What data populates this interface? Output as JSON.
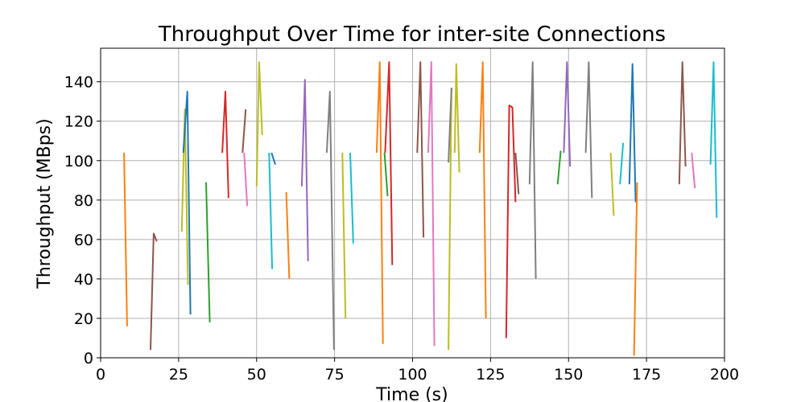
{
  "chart_data": {
    "type": "line",
    "title": "Throughput Over Time for inter-site Connections",
    "xlabel": "Time (s)",
    "ylabel": "Throughput (MBps)",
    "xlim": [
      0,
      200
    ],
    "ylim": [
      0,
      157
    ],
    "xticks": [
      0,
      25,
      50,
      75,
      100,
      125,
      150,
      175,
      200
    ],
    "yticks": [
      0,
      20,
      40,
      60,
      80,
      100,
      120,
      140
    ],
    "grid": true,
    "legend": "none",
    "series": [
      {
        "color": "#ff7f0e",
        "points": [
          [
            7.5,
            104
          ],
          [
            8.5,
            16
          ]
        ]
      },
      {
        "color": "#8c564b",
        "points": [
          [
            16,
            4
          ],
          [
            17,
            63
          ],
          [
            18,
            59
          ]
        ]
      },
      {
        "color": "#bcbd22",
        "points": [
          [
            26,
            64
          ],
          [
            27,
            126
          ],
          [
            28,
            37
          ]
        ]
      },
      {
        "color": "#1f77b4",
        "points": [
          [
            26.5,
            104
          ],
          [
            27.8,
            135
          ],
          [
            28.8,
            22
          ]
        ]
      },
      {
        "color": "#2ca02c",
        "points": [
          [
            33.8,
            89
          ],
          [
            35,
            18
          ]
        ]
      },
      {
        "color": "#d62728",
        "points": [
          [
            39,
            104
          ],
          [
            40,
            135
          ],
          [
            41,
            81
          ]
        ]
      },
      {
        "color": "#8c564b",
        "points": [
          [
            45.5,
            104
          ],
          [
            46.5,
            126
          ]
        ]
      },
      {
        "color": "#e377c2",
        "points": [
          [
            46,
            104
          ],
          [
            47,
            77
          ]
        ]
      },
      {
        "color": "#bcbd22",
        "points": [
          [
            50,
            87
          ],
          [
            50.8,
            150
          ],
          [
            51.8,
            113
          ]
        ]
      },
      {
        "color": "#17becf",
        "points": [
          [
            54,
            104
          ],
          [
            55,
            45
          ]
        ]
      },
      {
        "color": "#1f77b4",
        "points": [
          [
            54.8,
            104
          ],
          [
            56,
            98
          ]
        ]
      },
      {
        "color": "#ff7f0e",
        "points": [
          [
            59.5,
            84
          ],
          [
            60.5,
            40
          ]
        ]
      },
      {
        "color": "#9467bd",
        "points": [
          [
            64.5,
            87
          ],
          [
            65.5,
            141
          ],
          [
            66.5,
            49
          ]
        ]
      },
      {
        "color": "#7f7f7f",
        "points": [
          [
            72.5,
            104
          ],
          [
            73.5,
            135
          ],
          [
            74.8,
            4
          ]
        ]
      },
      {
        "color": "#bcbd22",
        "points": [
          [
            77.5,
            104
          ],
          [
            78.5,
            20
          ]
        ]
      },
      {
        "color": "#17becf",
        "points": [
          [
            80,
            104
          ],
          [
            81,
            58
          ]
        ]
      },
      {
        "color": "#ff7f0e",
        "points": [
          [
            88.5,
            104
          ],
          [
            89.5,
            150
          ],
          [
            90.5,
            7
          ]
        ]
      },
      {
        "color": "#2ca02c",
        "points": [
          [
            91,
            104
          ],
          [
            92,
            82
          ]
        ]
      },
      {
        "color": "#d62728",
        "points": [
          [
            91.2,
            104
          ],
          [
            92.5,
            150
          ],
          [
            93.5,
            47
          ]
        ]
      },
      {
        "color": "#8c564b",
        "points": [
          [
            101.5,
            104
          ],
          [
            102.5,
            150
          ],
          [
            103.5,
            61
          ]
        ]
      },
      {
        "color": "#e377c2",
        "points": [
          [
            105,
            104
          ],
          [
            106,
            150
          ],
          [
            107,
            6
          ]
        ]
      },
      {
        "color": "#bcbd22",
        "points": [
          [
            111.5,
            4
          ],
          [
            112.5,
            137
          ]
        ]
      },
      {
        "color": "#7f7f7f",
        "points": [
          [
            111.5,
            99
          ],
          [
            112.5,
            137
          ]
        ]
      },
      {
        "color": "#bcbd22",
        "points": [
          [
            113.5,
            104
          ],
          [
            114,
            149
          ],
          [
            115,
            94
          ]
        ]
      },
      {
        "color": "#ff7f0e",
        "points": [
          [
            121.5,
            104
          ],
          [
            122.5,
            150
          ],
          [
            123.5,
            20
          ]
        ]
      },
      {
        "color": "#d62728",
        "points": [
          [
            130,
            10
          ],
          [
            131,
            128
          ],
          [
            132,
            127
          ],
          [
            133,
            79
          ]
        ]
      },
      {
        "color": "#8c564b",
        "points": [
          [
            133,
            104
          ],
          [
            134,
            83
          ]
        ]
      },
      {
        "color": "#7f7f7f",
        "points": [
          [
            137.5,
            88
          ],
          [
            138.5,
            150
          ],
          [
            139.5,
            40
          ]
        ]
      },
      {
        "color": "#2ca02c",
        "points": [
          [
            146.5,
            88
          ],
          [
            147.5,
            105
          ]
        ]
      },
      {
        "color": "#9467bd",
        "points": [
          [
            148.5,
            104
          ],
          [
            149.5,
            150
          ],
          [
            150.5,
            97
          ]
        ]
      },
      {
        "color": "#7f7f7f",
        "points": [
          [
            155.5,
            104
          ],
          [
            156.5,
            150
          ],
          [
            157.5,
            81
          ]
        ]
      },
      {
        "color": "#bcbd22",
        "points": [
          [
            163.5,
            104
          ],
          [
            164.5,
            72
          ]
        ]
      },
      {
        "color": "#17becf",
        "points": [
          [
            166.5,
            88
          ],
          [
            167.5,
            109
          ]
        ]
      },
      {
        "color": "#1f77b4",
        "points": [
          [
            169.5,
            88
          ],
          [
            170.5,
            149
          ],
          [
            171.5,
            79
          ]
        ]
      },
      {
        "color": "#ff7f0e",
        "points": [
          [
            171,
            1
          ],
          [
            172,
            89
          ]
        ]
      },
      {
        "color": "#8c564b",
        "points": [
          [
            185.5,
            88
          ],
          [
            186.5,
            150
          ],
          [
            187.5,
            97
          ]
        ]
      },
      {
        "color": "#e377c2",
        "points": [
          [
            189.5,
            104
          ],
          [
            190.5,
            86
          ]
        ]
      },
      {
        "color": "#17becf",
        "points": [
          [
            195.5,
            98
          ],
          [
            196.5,
            150
          ],
          [
            197.5,
            71
          ]
        ]
      }
    ]
  }
}
